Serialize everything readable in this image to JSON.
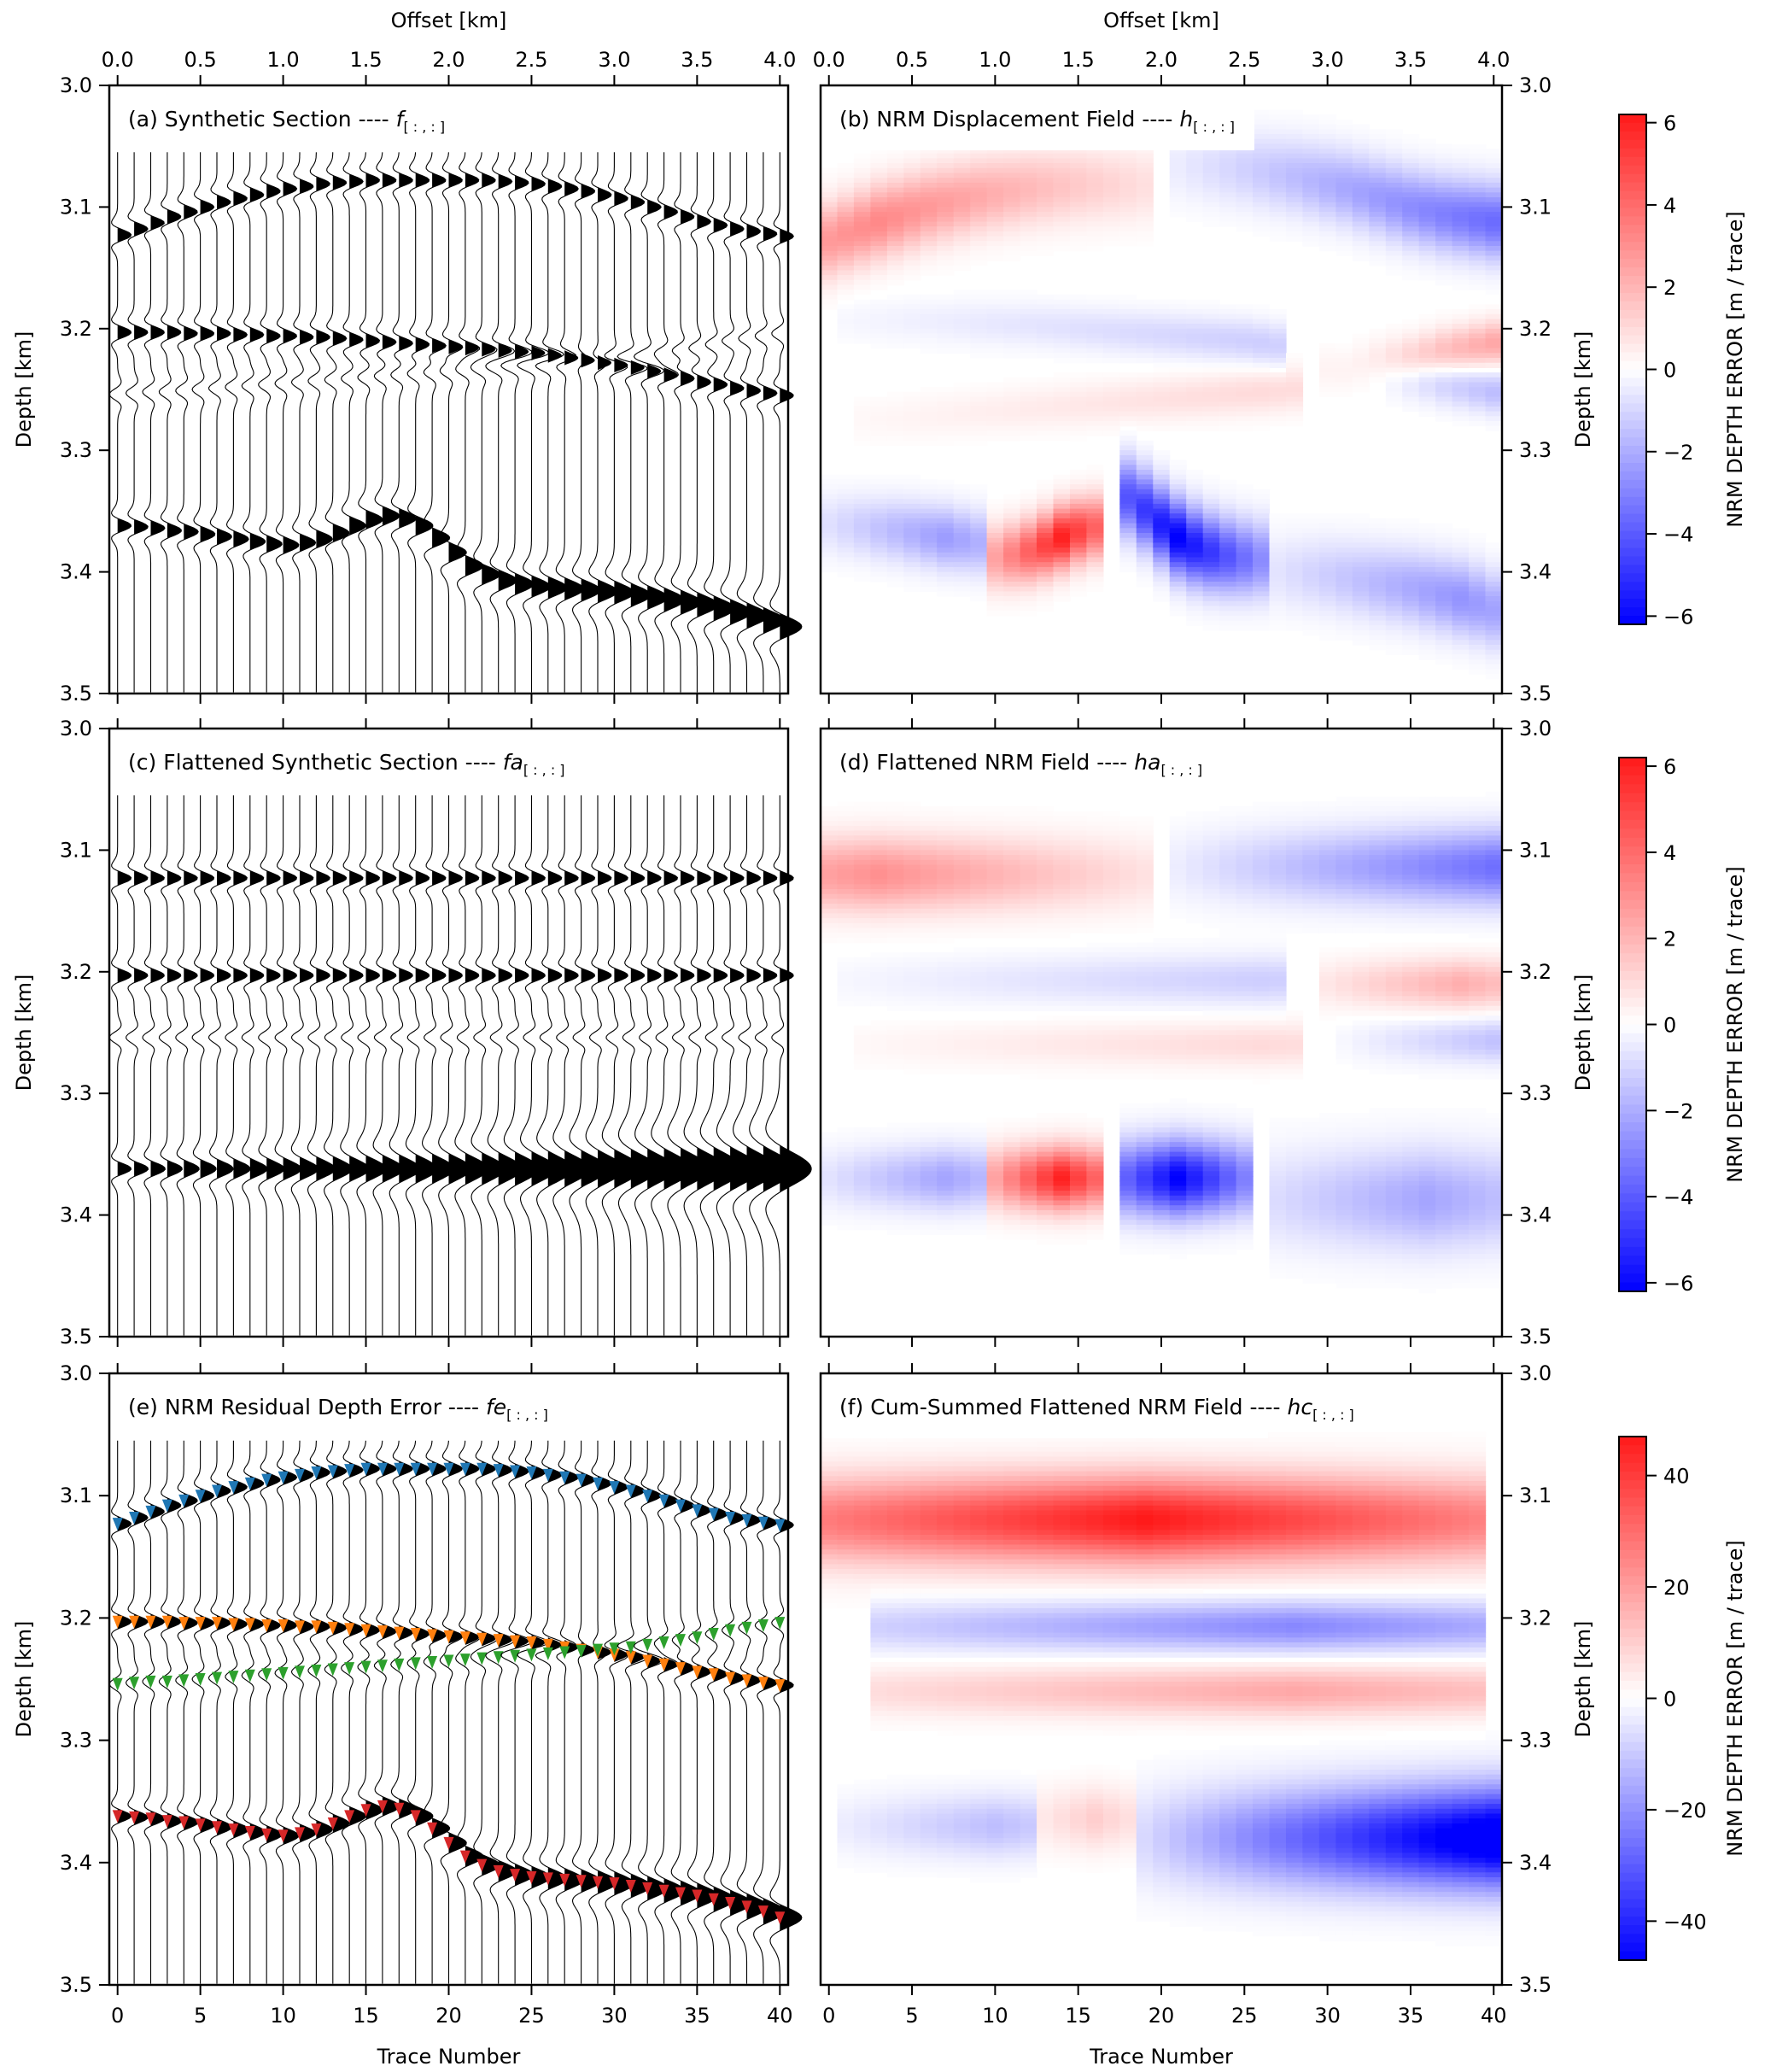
{
  "figure": {
    "top_axis_label": "Offset [km]",
    "bottom_axis_label": "Trace Number",
    "left_axis_label": "Depth [km]",
    "right_axis_label": "Depth [km]",
    "colorbar_label": "NRM DEPTH ERROR [m / trace]"
  },
  "chart_data": [
    {
      "id": "a",
      "type": "wiggle",
      "title_prefix": "(a) Synthetic Section ---- ",
      "title_symbol": "f",
      "title_subscript": "[ : , : ]",
      "x_range": [
        -0.5,
        40.5
      ],
      "y_range": [
        3.0,
        3.5
      ],
      "offset_range_km": [
        0.0,
        4.0
      ],
      "n_traces": 41,
      "trace_start_depth": 3.055,
      "horizons_km": {
        "h1": [
          3.123,
          3.118,
          3.113,
          3.108,
          3.104,
          3.1,
          3.096,
          3.093,
          3.09,
          3.087,
          3.085,
          3.083,
          3.081,
          3.08,
          3.079,
          3.078,
          3.078,
          3.078,
          3.078,
          3.078,
          3.078,
          3.078,
          3.078,
          3.079,
          3.08,
          3.081,
          3.083,
          3.085,
          3.087,
          3.09,
          3.093,
          3.096,
          3.1,
          3.104,
          3.108,
          3.112,
          3.115,
          3.118,
          3.12,
          3.122,
          3.124
        ],
        "h2": [
          3.203,
          3.203,
          3.203,
          3.203,
          3.204,
          3.204,
          3.204,
          3.205,
          3.205,
          3.206,
          3.206,
          3.207,
          3.207,
          3.208,
          3.209,
          3.21,
          3.211,
          3.212,
          3.213,
          3.214,
          3.215,
          3.216,
          3.217,
          3.218,
          3.219,
          3.22,
          3.222,
          3.224,
          3.226,
          3.228,
          3.23,
          3.232,
          3.235,
          3.238,
          3.241,
          3.244,
          3.246,
          3.249,
          3.251,
          3.253,
          3.255
        ],
        "h3": [
          3.254,
          3.253,
          3.252,
          3.252,
          3.251,
          3.25,
          3.249,
          3.248,
          3.247,
          3.246,
          3.245,
          3.244,
          3.243,
          3.242,
          3.241,
          3.24,
          3.239,
          3.238,
          3.237,
          3.236,
          3.235,
          3.234,
          3.233,
          3.232,
          3.231,
          3.23,
          3.229,
          3.228,
          3.227,
          3.226,
          3.225,
          3.224,
          3.222,
          3.22,
          3.218,
          3.216,
          3.213,
          3.21,
          3.208,
          3.206,
          3.204
        ],
        "h4": [
          3.362,
          3.363,
          3.364,
          3.366,
          3.367,
          3.369,
          3.371,
          3.373,
          3.375,
          3.377,
          3.378,
          3.376,
          3.373,
          3.368,
          3.362,
          3.357,
          3.354,
          3.356,
          3.362,
          3.372,
          3.384,
          3.395,
          3.402,
          3.407,
          3.41,
          3.412,
          3.413,
          3.414,
          3.415,
          3.416,
          3.417,
          3.419,
          3.421,
          3.423,
          3.425,
          3.427,
          3.43,
          3.433,
          3.436,
          3.44,
          3.445
        ]
      }
    },
    {
      "id": "b",
      "type": "heatmap",
      "title_prefix": "(b) NRM Displacement Field ---- ",
      "title_symbol": "h",
      "title_subscript": "[ : , : ]",
      "x_range": [
        -0.5,
        40.5
      ],
      "y_range": [
        3.0,
        3.5
      ],
      "colorbar": {
        "min": -6.2,
        "max": 6.2,
        "ticks": [
          6,
          4,
          2,
          0,
          -2,
          -4,
          -6
        ],
        "tick_labels": [
          "6",
          "4",
          "2",
          "0",
          "−2",
          "−4",
          "−6"
        ]
      },
      "colormap": [
        "#0000ff",
        "#ffffff",
        "#ff0000"
      ],
      "anomalies": [
        {
          "trace_from": 0,
          "trace_to": 19,
          "depth_center": 3.11,
          "depth_halfwidth": 0.03,
          "peak": 3.2,
          "peak_trace": 3,
          "follows": "h1"
        },
        {
          "trace_from": 21,
          "trace_to": 40,
          "depth_center": 3.11,
          "depth_halfwidth": 0.03,
          "peak": -3.6,
          "peak_trace": 40,
          "follows": "h1"
        },
        {
          "trace_from": 1,
          "trace_to": 27,
          "depth_center": 3.21,
          "depth_halfwidth": 0.018,
          "peak": -1.2,
          "peak_trace": 26,
          "follows": "h2"
        },
        {
          "trace_from": 30,
          "trace_to": 40,
          "depth_center": 3.21,
          "depth_halfwidth": 0.018,
          "peak": 2.4,
          "peak_trace": 40,
          "follows": "h3"
        },
        {
          "trace_from": 2,
          "trace_to": 28,
          "depth_center": 3.25,
          "depth_halfwidth": 0.018,
          "peak": 1.0,
          "peak_trace": 26,
          "follows": "h3"
        },
        {
          "trace_from": 31,
          "trace_to": 40,
          "depth_center": 3.25,
          "depth_halfwidth": 0.018,
          "peak": -1.6,
          "peak_trace": 40,
          "follows": "h2"
        },
        {
          "trace_from": 0,
          "trace_to": 9,
          "depth_center": 3.37,
          "depth_halfwidth": 0.025,
          "peak": -2.4,
          "peak_trace": 7,
          "follows": "h4"
        },
        {
          "trace_from": 10,
          "trace_to": 16,
          "depth_center": 3.37,
          "depth_halfwidth": 0.025,
          "peak": 6.0,
          "peak_trace": 14,
          "follows": "h4"
        },
        {
          "trace_from": 18,
          "trace_to": 26,
          "depth_center": 3.37,
          "depth_halfwidth": 0.03,
          "peak": -6.2,
          "peak_trace": 21,
          "follows": "h4"
        },
        {
          "trace_from": 27,
          "trace_to": 40,
          "depth_center": 3.42,
          "depth_halfwidth": 0.03,
          "peak": -2.6,
          "peak_trace": 38,
          "follows": "h4"
        }
      ]
    },
    {
      "id": "c",
      "type": "wiggle",
      "title_prefix": "(c) Flattened Synthetic Section ---- ",
      "title_symbol": "fa",
      "title_subscript": "[ : , : ]",
      "x_range": [
        -0.5,
        40.5
      ],
      "y_range": [
        3.0,
        3.5
      ],
      "flattened": true,
      "flat_depths_km": {
        "h1": 3.123,
        "h2": 3.203,
        "h3": 3.254,
        "h4": 3.362
      }
    },
    {
      "id": "d",
      "type": "heatmap",
      "title_prefix": "(d) Flattened NRM Field ---- ",
      "title_symbol": "ha",
      "title_subscript": "[ : , : ]",
      "x_range": [
        -0.5,
        40.5
      ],
      "y_range": [
        3.0,
        3.5
      ],
      "colorbar": {
        "min": -6.2,
        "max": 6.2,
        "ticks": [
          6,
          4,
          2,
          0,
          -2,
          -4,
          -6
        ],
        "tick_labels": [
          "6",
          "4",
          "2",
          "0",
          "−2",
          "−4",
          "−6"
        ]
      },
      "colormap": [
        "#0000ff",
        "#ffffff",
        "#ff0000"
      ],
      "anomalies": [
        {
          "trace_from": 0,
          "trace_to": 19,
          "depth_center": 3.118,
          "depth_halfwidth": 0.03,
          "peak": 3.0,
          "peak_trace": 3
        },
        {
          "trace_from": 21,
          "trace_to": 40,
          "depth_center": 3.112,
          "depth_halfwidth": 0.03,
          "peak": -3.5,
          "peak_trace": 40
        },
        {
          "trace_from": 1,
          "trace_to": 27,
          "depth_center": 3.205,
          "depth_halfwidth": 0.02,
          "peak": -1.2,
          "peak_trace": 26
        },
        {
          "trace_from": 30,
          "trace_to": 40,
          "depth_center": 3.208,
          "depth_halfwidth": 0.02,
          "peak": 2.2,
          "peak_trace": 38
        },
        {
          "trace_from": 2,
          "trace_to": 28,
          "depth_center": 3.258,
          "depth_halfwidth": 0.018,
          "peak": 1.0,
          "peak_trace": 26
        },
        {
          "trace_from": 31,
          "trace_to": 40,
          "depth_center": 3.255,
          "depth_halfwidth": 0.018,
          "peak": -1.5,
          "peak_trace": 40
        },
        {
          "trace_from": 0,
          "trace_to": 9,
          "depth_center": 3.368,
          "depth_halfwidth": 0.025,
          "peak": -2.2,
          "peak_trace": 7
        },
        {
          "trace_from": 10,
          "trace_to": 16,
          "depth_center": 3.368,
          "depth_halfwidth": 0.025,
          "peak": 6.0,
          "peak_trace": 14
        },
        {
          "trace_from": 18,
          "trace_to": 25,
          "depth_center": 3.368,
          "depth_halfwidth": 0.03,
          "peak": -6.2,
          "peak_trace": 21
        },
        {
          "trace_from": 27,
          "trace_to": 40,
          "depth_center": 3.385,
          "depth_halfwidth": 0.04,
          "peak": -2.2,
          "peak_trace": 36
        }
      ]
    },
    {
      "id": "e",
      "type": "wiggle",
      "title_prefix": "(e) NRM Residual Depth Error ---- ",
      "title_symbol": "fe",
      "title_subscript": "[ : , : ]",
      "x_range": [
        -0.5,
        40.5
      ],
      "y_range": [
        3.0,
        3.5
      ],
      "pick_colors": {
        "h1": "#1f77b4",
        "h2": "#ff7f0e",
        "h3": "#2ca02c",
        "h4": "#d62728"
      }
    },
    {
      "id": "f",
      "type": "heatmap",
      "title_prefix": "(f) Cum-Summed Flattened NRM Field ---- ",
      "title_symbol": "hc",
      "title_subscript": "[ : , : ]",
      "x_range": [
        -0.5,
        40.5
      ],
      "y_range": [
        3.0,
        3.5
      ],
      "colorbar": {
        "min": -47,
        "max": 47,
        "ticks": [
          40,
          20,
          0,
          -20,
          -40
        ],
        "tick_labels": [
          "40",
          "20",
          "0",
          "−20",
          "−40"
        ]
      },
      "colormap": [
        "#0000ff",
        "#ffffff",
        "#ff0000"
      ],
      "anomalies": [
        {
          "trace_from": 0,
          "trace_to": 39,
          "depth_center": 3.118,
          "depth_halfwidth": 0.035,
          "peak": 47,
          "peak_trace": 19
        },
        {
          "trace_from": 3,
          "trace_to": 39,
          "depth_center": 3.205,
          "depth_halfwidth": 0.02,
          "peak": -22,
          "peak_trace": 28
        },
        {
          "trace_from": 3,
          "trace_to": 39,
          "depth_center": 3.258,
          "depth_halfwidth": 0.02,
          "peak": 18,
          "peak_trace": 28
        },
        {
          "trace_from": 1,
          "trace_to": 12,
          "depth_center": 3.368,
          "depth_halfwidth": 0.025,
          "peak": -12,
          "peak_trace": 10
        },
        {
          "trace_from": 13,
          "trace_to": 18,
          "depth_center": 3.362,
          "depth_halfwidth": 0.025,
          "peak": 10,
          "peak_trace": 16
        },
        {
          "trace_from": 19,
          "trace_to": 40,
          "depth_center": 3.378,
          "depth_halfwidth": 0.04,
          "peak": -55,
          "peak_trace": 40
        }
      ]
    }
  ],
  "axes": {
    "offset_ticks": [
      "0.0",
      "0.5",
      "1.0",
      "1.5",
      "2.0",
      "2.5",
      "3.0",
      "3.5",
      "4.0"
    ],
    "trace_ticks": [
      "0",
      "5",
      "10",
      "15",
      "20",
      "25",
      "30",
      "35",
      "40"
    ],
    "depth_ticks": [
      "3.0",
      "3.1",
      "3.2",
      "3.3",
      "3.4",
      "3.5"
    ]
  }
}
